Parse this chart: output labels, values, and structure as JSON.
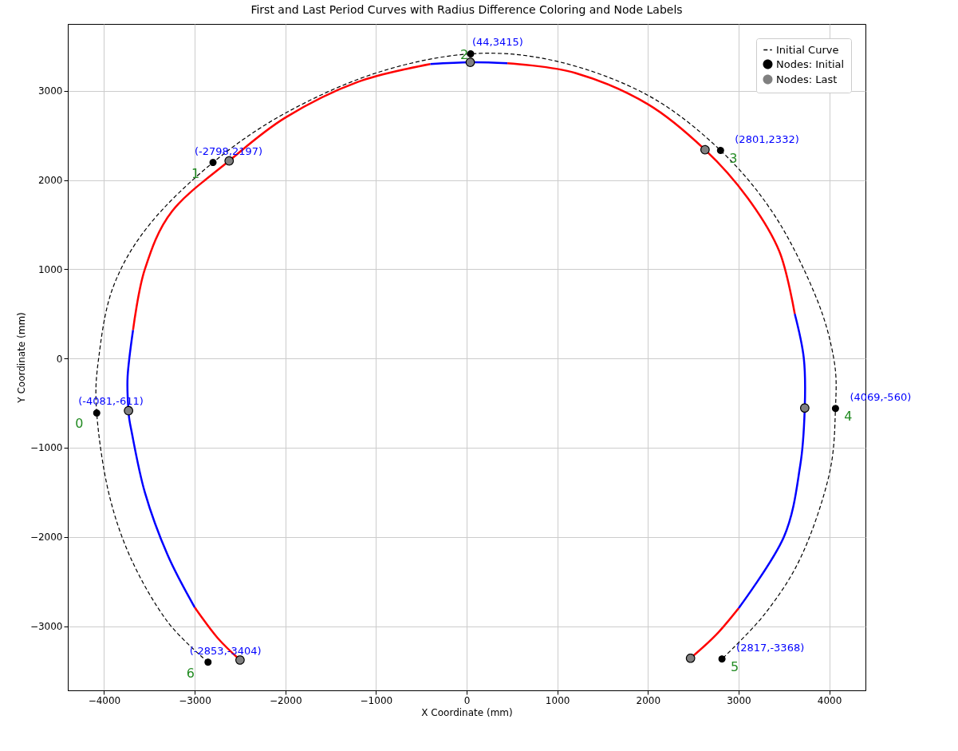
{
  "chart_data": {
    "type": "line",
    "title": "First and Last Period Curves with Radius Difference Coloring and Node Labels",
    "xlabel": "X Coordinate (mm)",
    "ylabel": "Y Coordinate (mm)",
    "xlim": [
      -4400,
      4400
    ],
    "ylim": [
      -3720,
      3750
    ],
    "xticks": [
      -4000,
      -3000,
      -2000,
      -1000,
      0,
      1000,
      2000,
      3000,
      4000
    ],
    "yticks": [
      -3000,
      -2000,
      -1000,
      0,
      1000,
      2000,
      3000
    ],
    "grid": true,
    "legend": "top right",
    "series": [
      {
        "name": "Initial Curve",
        "type": "line",
        "line_style": "dashed",
        "color": "#000000",
        "x": [
          -2853,
          -3300,
          -3700,
          -3950,
          -4081,
          -4060,
          -3900,
          -3500,
          -2798,
          -2000,
          -1000,
          44,
          1000,
          2000,
          2801,
          3400,
          3850,
          4050,
          4069,
          4000,
          3700,
          3300,
          2817
        ],
        "values": [
          -3404,
          -2950,
          -2250,
          -1500,
          -611,
          0,
          800,
          1500,
          2197,
          2750,
          3200,
          3415,
          3330,
          2950,
          2332,
          1600,
          700,
          0,
          -560,
          -1300,
          -2200,
          -2850,
          -3368
        ]
      },
      {
        "color": "#ff0000",
        "x": [
          -2500,
          -2750,
          -3000
        ],
        "values": [
          -3380,
          -3130,
          -2790
        ]
      },
      {
        "color": "#0000ff",
        "x": [
          -3000,
          -3300,
          -3550,
          -3700,
          -3730,
          -3740,
          -3680
        ],
        "values": [
          -2790,
          -2200,
          -1500,
          -800,
          -585,
          -200,
          320
        ]
      },
      {
        "color": "#ff0000",
        "x": [
          -3680,
          -3550,
          -3250,
          -2620,
          -2000,
          -1200,
          -400
        ],
        "values": [
          320,
          1000,
          1650,
          2215,
          2700,
          3100,
          3300
        ]
      },
      {
        "color": "#0000ff",
        "x": [
          -400,
          40,
          450
        ],
        "values": [
          3300,
          3320,
          3310
        ]
      },
      {
        "color": "#ff0000",
        "x": [
          450,
          1200,
          2000,
          2630,
          3100,
          3450,
          3620
        ],
        "values": [
          3310,
          3200,
          2850,
          2340,
          1800,
          1200,
          500
        ]
      },
      {
        "color": "#0000ff",
        "x": [
          3620,
          3720,
          3730,
          3680,
          3500,
          3000
        ],
        "values": [
          500,
          0,
          -555,
          -1200,
          -2000,
          -2800
        ]
      },
      {
        "color": "#ff0000",
        "x": [
          3000,
          2750,
          2470
        ],
        "values": [
          -2800,
          -3100,
          -3360
        ]
      },
      {
        "name": "Nodes: Initial",
        "type": "scatter",
        "marker": "circle",
        "color": "#000000",
        "x": [
          -4081,
          -2798,
          44,
          2801,
          4069,
          2817,
          -2853
        ],
        "values": [
          -611,
          2197,
          3415,
          2332,
          -560,
          -3368,
          -3404
        ]
      },
      {
        "name": "Nodes: Last",
        "type": "scatter",
        "marker": "circle",
        "color": "#808080",
        "x": [
          -3730,
          -2620,
          40,
          2630,
          3730,
          2470,
          -2500
        ],
        "values": [
          -585,
          2215,
          3320,
          2340,
          -555,
          -3360,
          -3380
        ]
      }
    ],
    "annotations": [
      {
        "text": "0",
        "x": -4081,
        "y": -611
      },
      {
        "text": "(-4081,-611)",
        "x": -4081,
        "y": -611
      },
      {
        "text": "1",
        "x": -2798,
        "y": 2197
      },
      {
        "text": "(-2798,2197)",
        "x": -2798,
        "y": 2197
      },
      {
        "text": "2",
        "x": 44,
        "y": 3415
      },
      {
        "text": "(44,3415)",
        "x": 44,
        "y": 3415
      },
      {
        "text": "3",
        "x": 2801,
        "y": 2332
      },
      {
        "text": "(2801,2332)",
        "x": 2801,
        "y": 2332
      },
      {
        "text": "4",
        "x": 4069,
        "y": -560
      },
      {
        "text": "(4069,-560)",
        "x": 4069,
        "y": -560
      },
      {
        "text": "5",
        "x": 2817,
        "y": -3368
      },
      {
        "text": "(2817,-3368)",
        "x": 2817,
        "y": -3368
      },
      {
        "text": "6",
        "x": -2853,
        "y": -3404
      },
      {
        "text": "(-2853,-3404)",
        "x": -2853,
        "y": -3404
      }
    ]
  }
}
